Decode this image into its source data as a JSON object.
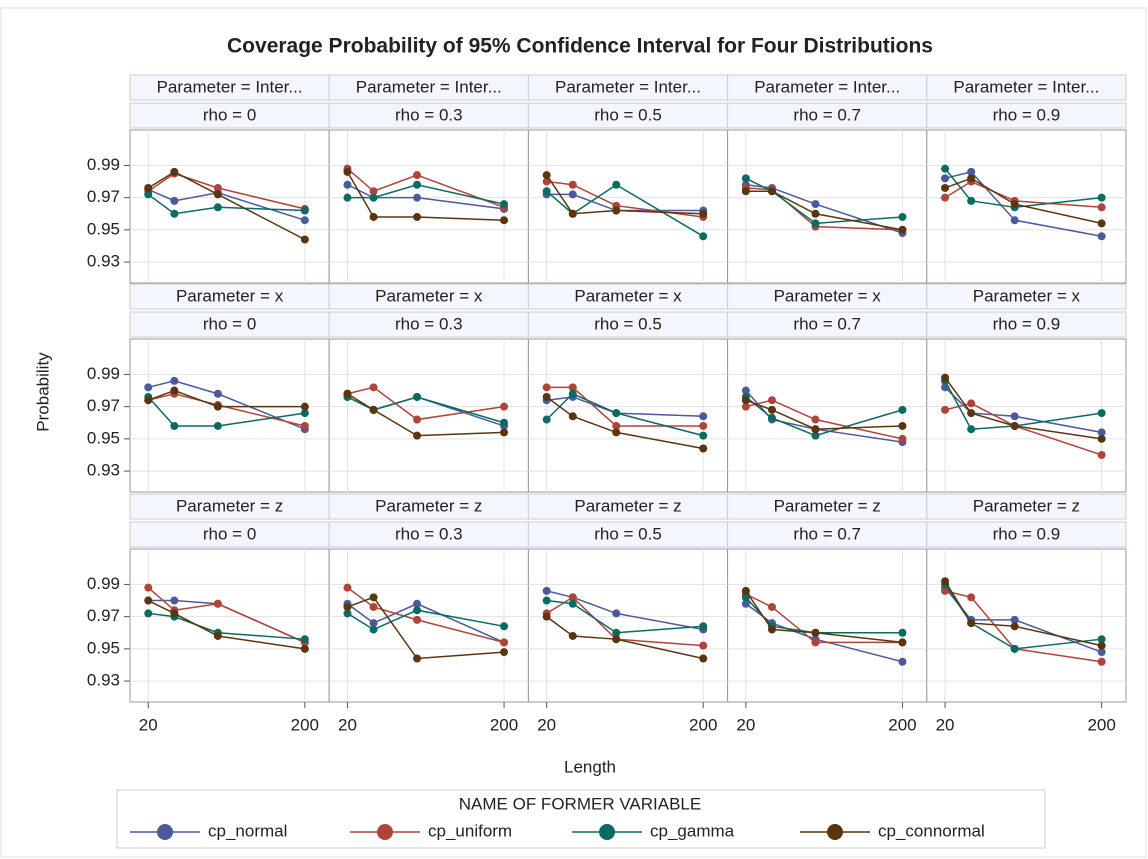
{
  "chart_data": {
    "type": "line",
    "title": "Coverage Probability of 95% Confidence Interval for Four Distributions",
    "x_label": "Length",
    "y_label": "Probability",
    "legend_title": "NAME OF FORMER VARIABLE",
    "x": [
      20,
      50,
      100,
      200
    ],
    "xlim": [
      -1,
      228
    ],
    "xticks": [
      20,
      200
    ],
    "ylim": [
      0.917,
      1.012
    ],
    "yticks": [
      0.93,
      0.95,
      0.97,
      0.99
    ],
    "grid": true,
    "series": [
      {
        "name": "cp_normal",
        "color": "#4a5a9c"
      },
      {
        "name": "cp_uniform",
        "color": "#b0443a"
      },
      {
        "name": "cp_gamma",
        "color": "#0b6b60"
      },
      {
        "name": "cp_connormal",
        "color": "#5a3510"
      }
    ],
    "panels": [
      {
        "row_label": "Parameter = Inter...",
        "col_label": "rho = 0",
        "values": [
          [
            0.975,
            0.968,
            0.973,
            0.956
          ],
          [
            0.974,
            0.985,
            0.976,
            0.963
          ],
          [
            0.972,
            0.96,
            0.964,
            0.962
          ],
          [
            0.976,
            0.986,
            0.972,
            0.944
          ]
        ]
      },
      {
        "row_label": "Parameter = Inter...",
        "col_label": "rho = 0.3",
        "values": [
          [
            0.978,
            0.97,
            0.97,
            0.963
          ],
          [
            0.988,
            0.974,
            0.984,
            0.964
          ],
          [
            0.97,
            0.97,
            0.978,
            0.966
          ],
          [
            0.986,
            0.958,
            0.958,
            0.956
          ]
        ]
      },
      {
        "row_label": "Parameter = Inter...",
        "col_label": "rho = 0.5",
        "values": [
          [
            0.972,
            0.972,
            0.962,
            0.962
          ],
          [
            0.98,
            0.978,
            0.965,
            0.958
          ],
          [
            0.974,
            0.96,
            0.978,
            0.946
          ],
          [
            0.984,
            0.96,
            0.962,
            0.96
          ]
        ]
      },
      {
        "row_label": "Parameter = Inter...",
        "col_label": "rho = 0.7",
        "values": [
          [
            0.978,
            0.976,
            0.966,
            0.948
          ],
          [
            0.976,
            0.975,
            0.952,
            0.95
          ],
          [
            0.982,
            0.974,
            0.954,
            0.958
          ],
          [
            0.974,
            0.974,
            0.96,
            0.95
          ]
        ]
      },
      {
        "row_label": "Parameter = Inter...",
        "col_label": "rho = 0.9",
        "values": [
          [
            0.982,
            0.986,
            0.956,
            0.946
          ],
          [
            0.97,
            0.98,
            0.968,
            0.964
          ],
          [
            0.988,
            0.968,
            0.964,
            0.97
          ],
          [
            0.976,
            0.982,
            0.966,
            0.954
          ]
        ]
      },
      {
        "row_label": "Parameter = x",
        "col_label": "rho = 0",
        "values": [
          [
            0.982,
            0.986,
            0.978,
            0.956
          ],
          [
            0.974,
            0.978,
            0.971,
            0.958
          ],
          [
            0.976,
            0.958,
            0.958,
            0.966
          ],
          [
            0.974,
            0.98,
            0.97,
            0.97
          ]
        ]
      },
      {
        "row_label": "Parameter = x",
        "col_label": "rho = 0.3",
        "values": [
          [
            0.976,
            0.968,
            0.976,
            0.958
          ],
          [
            0.978,
            0.982,
            0.962,
            0.97
          ],
          [
            0.976,
            0.968,
            0.976,
            0.96
          ],
          [
            0.978,
            0.968,
            0.952,
            0.954
          ]
        ]
      },
      {
        "row_label": "Parameter = x",
        "col_label": "rho = 0.5",
        "values": [
          [
            0.974,
            0.976,
            0.966,
            0.964
          ],
          [
            0.982,
            0.982,
            0.958,
            0.958
          ],
          [
            0.962,
            0.978,
            0.966,
            0.952
          ],
          [
            0.976,
            0.964,
            0.954,
            0.944
          ]
        ]
      },
      {
        "row_label": "Parameter = x",
        "col_label": "rho = 0.7",
        "values": [
          [
            0.98,
            0.962,
            0.956,
            0.948
          ],
          [
            0.97,
            0.974,
            0.962,
            0.95
          ],
          [
            0.976,
            0.963,
            0.952,
            0.968
          ],
          [
            0.974,
            0.968,
            0.956,
            0.958
          ]
        ]
      },
      {
        "row_label": "Parameter = x",
        "col_label": "rho = 0.9",
        "values": [
          [
            0.982,
            0.966,
            0.964,
            0.954
          ],
          [
            0.968,
            0.972,
            0.958,
            0.94
          ],
          [
            0.986,
            0.956,
            0.958,
            0.966
          ],
          [
            0.988,
            0.966,
            0.958,
            0.95
          ]
        ]
      },
      {
        "row_label": "Parameter = z",
        "col_label": "rho = 0",
        "values": [
          [
            0.98,
            0.98,
            0.978,
            0.954
          ],
          [
            0.988,
            0.974,
            0.978,
            0.954
          ],
          [
            0.972,
            0.97,
            0.96,
            0.956
          ],
          [
            0.98,
            0.972,
            0.958,
            0.95
          ]
        ]
      },
      {
        "row_label": "Parameter = z",
        "col_label": "rho = 0.3",
        "values": [
          [
            0.978,
            0.966,
            0.978,
            0.954
          ],
          [
            0.988,
            0.976,
            0.968,
            0.954
          ],
          [
            0.972,
            0.962,
            0.974,
            0.964
          ],
          [
            0.976,
            0.982,
            0.944,
            0.948
          ]
        ]
      },
      {
        "row_label": "Parameter = z",
        "col_label": "rho = 0.5",
        "values": [
          [
            0.986,
            0.982,
            0.972,
            0.962
          ],
          [
            0.972,
            0.982,
            0.956,
            0.952
          ],
          [
            0.98,
            0.978,
            0.96,
            0.964
          ],
          [
            0.97,
            0.958,
            0.956,
            0.944
          ]
        ]
      },
      {
        "row_label": "Parameter = z",
        "col_label": "rho = 0.7",
        "values": [
          [
            0.978,
            0.966,
            0.956,
            0.942
          ],
          [
            0.984,
            0.976,
            0.954,
            0.954
          ],
          [
            0.982,
            0.964,
            0.96,
            0.96
          ],
          [
            0.986,
            0.962,
            0.96,
            0.954
          ]
        ]
      },
      {
        "row_label": "Parameter = z",
        "col_label": "rho = 0.9",
        "values": [
          [
            0.988,
            0.968,
            0.968,
            0.948
          ],
          [
            0.986,
            0.982,
            0.95,
            0.942
          ],
          [
            0.99,
            0.966,
            0.95,
            0.956
          ],
          [
            0.992,
            0.966,
            0.964,
            0.952
          ]
        ]
      }
    ]
  }
}
